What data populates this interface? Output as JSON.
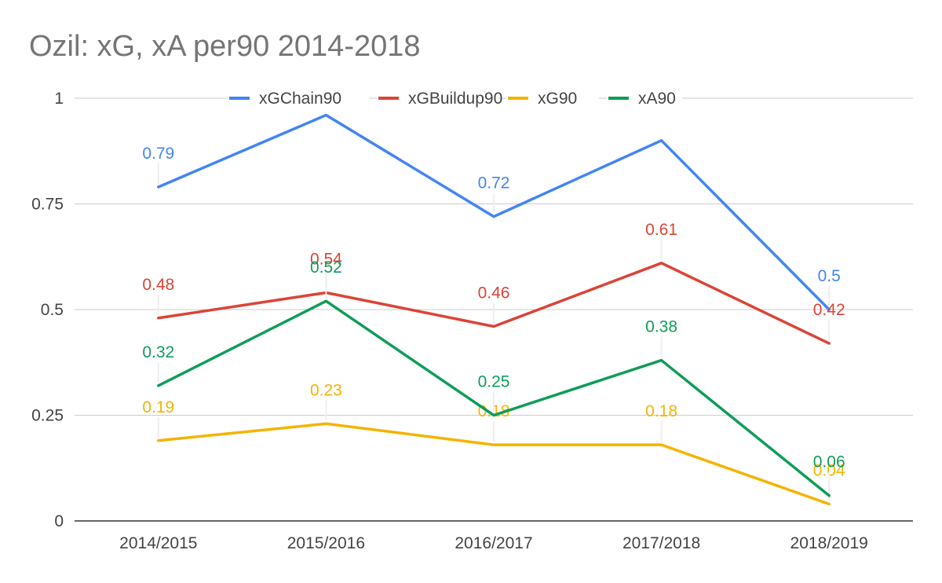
{
  "chart_data": {
    "type": "line",
    "title": "Ozil: xG, xA per90 2014-2018",
    "xlabel": "",
    "ylabel": "",
    "categories": [
      "2014/2015",
      "2015/2016",
      "2016/2017",
      "2017/2018",
      "2018/2019"
    ],
    "ylim": [
      0,
      1
    ],
    "yticks": [
      "0",
      "0.25",
      "0.5",
      "0.75",
      "1"
    ],
    "grid": true,
    "legend_position": "top",
    "data_labels": true,
    "series": [
      {
        "name": "xGChain90",
        "color": "#4285F4",
        "values": [
          0.79,
          0.96,
          0.72,
          0.9,
          0.5
        ],
        "labels": [
          "0.79",
          null,
          "0.72",
          null,
          "0.5"
        ]
      },
      {
        "name": "xGBuildup90",
        "color": "#DB4437",
        "values": [
          0.48,
          0.54,
          0.46,
          0.61,
          0.42
        ],
        "labels": [
          "0.48",
          "0.54",
          "0.46",
          "0.61",
          "0.42"
        ]
      },
      {
        "name": "xG90",
        "color": "#F4B400",
        "values": [
          0.19,
          0.23,
          0.18,
          0.18,
          0.04
        ],
        "labels": [
          "0.19",
          "0.23",
          "0.18",
          "0.18",
          "0.04"
        ]
      },
      {
        "name": "xA90",
        "color": "#0F9D58",
        "values": [
          0.32,
          0.52,
          0.25,
          0.38,
          0.06
        ],
        "labels": [
          "0.32",
          "0.52",
          "0.25",
          "0.38",
          "0.06"
        ]
      }
    ]
  }
}
